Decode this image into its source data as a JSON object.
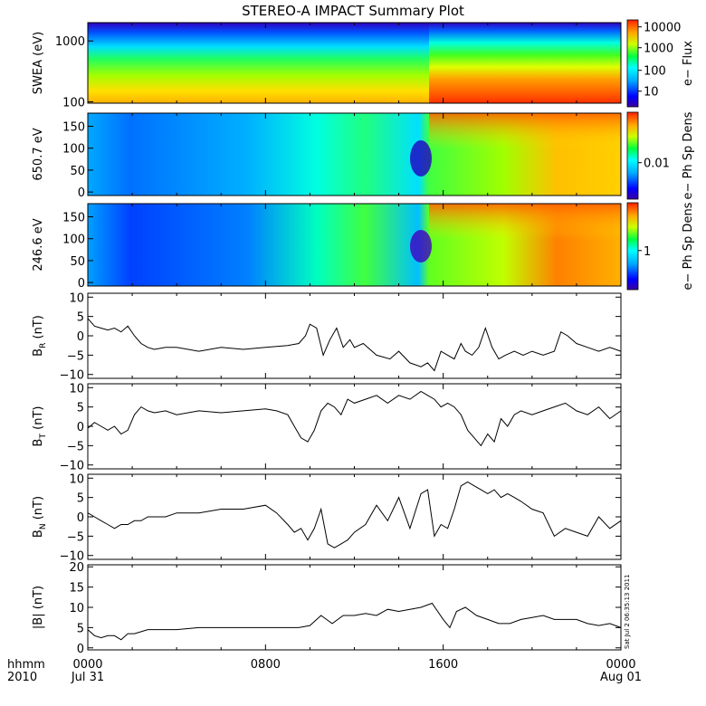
{
  "chart_data": {
    "type": "multi-panel",
    "title": "STEREO-A IMPACT Summary Plot",
    "time_axis": {
      "corner_label_1": "hhmm",
      "corner_label_2": "2010",
      "ticks": [
        {
          "hour": 0,
          "top": "0000",
          "bottom": "Jul 31"
        },
        {
          "hour": 8,
          "top": "0800",
          "bottom": ""
        },
        {
          "hour": 16,
          "top": "1600",
          "bottom": ""
        },
        {
          "hour": 24,
          "top": "0000",
          "bottom": "Aug 01"
        }
      ],
      "range_hours": [
        0,
        24
      ]
    },
    "timestamp": "Sat Jul  2 06:35:13 2011",
    "spectrograms": [
      {
        "ylabel": "SWEA (eV)",
        "scale": "log",
        "ylim": [
          95,
          2000
        ],
        "yticks": [
          {
            "v": 100,
            "t": "100"
          },
          {
            "v": 1000,
            "t": "1000"
          }
        ],
        "colorbar": {
          "label": "e− Flux",
          "ticks": [
            {
              "f": 0.92,
              "t": "10000"
            },
            {
              "f": 0.68,
              "t": "1000"
            },
            {
              "f": 0.42,
              "t": "100"
            },
            {
              "f": 0.18,
              "t": "10"
            }
          ]
        }
      },
      {
        "ylabel": "650.7 eV",
        "scale": "linear",
        "ylim": [
          -8,
          180
        ],
        "yticks": [
          {
            "v": 0,
            "t": "0"
          },
          {
            "v": 50,
            "t": "50"
          },
          {
            "v": 100,
            "t": "100"
          },
          {
            "v": 150,
            "t": "150"
          }
        ],
        "colorbar": {
          "label": "e− Ph Sp Dens",
          "ticks": [
            {
              "f": 0.42,
              "t": "0.01"
            }
          ]
        }
      },
      {
        "ylabel": "246.6 eV",
        "scale": "linear",
        "ylim": [
          -8,
          180
        ],
        "yticks": [
          {
            "v": 0,
            "t": "0"
          },
          {
            "v": 50,
            "t": "50"
          },
          {
            "v": 100,
            "t": "100"
          },
          {
            "v": 150,
            "t": "150"
          }
        ],
        "colorbar": {
          "label": "e− Ph Sp Dens",
          "ticks": [
            {
              "f": 0.45,
              "t": "1"
            }
          ]
        }
      }
    ],
    "line_panels": [
      {
        "ylabel_main": "B",
        "ylabel_sub": "R",
        "ylabel_unit": "(nT)",
        "ylim": [
          -11,
          11
        ],
        "yticks": [
          {
            "v": -10,
            "t": "−10"
          },
          {
            "v": -5,
            "t": "−5"
          },
          {
            "v": 0,
            "t": "0"
          },
          {
            "v": 5,
            "t": "5"
          },
          {
            "v": 10,
            "t": "10"
          }
        ],
        "x": [
          0,
          0.3,
          0.6,
          0.9,
          1.2,
          1.5,
          1.8,
          2.1,
          2.4,
          2.7,
          3,
          3.5,
          4,
          5,
          6,
          7,
          8,
          9,
          9.5,
          9.8,
          10,
          10.3,
          10.6,
          10.9,
          11.2,
          11.5,
          11.8,
          12,
          12.4,
          13,
          13.6,
          14,
          14.5,
          15,
          15.3,
          15.6,
          15.9,
          16.2,
          16.5,
          16.8,
          17,
          17.3,
          17.6,
          17.9,
          18.2,
          18.5,
          18.8,
          19.2,
          19.6,
          20,
          20.5,
          21,
          21.3,
          21.6,
          22,
          22.5,
          23,
          23.5,
          24
        ],
        "y": [
          4.5,
          2.5,
          2,
          1.5,
          2,
          1,
          2.5,
          0,
          -2,
          -3,
          -3.5,
          -3,
          -3,
          -4,
          -3,
          -3.5,
          -3,
          -2.5,
          -2,
          0,
          3,
          2,
          -5,
          -1,
          2,
          -3,
          -1,
          -3,
          -2,
          -5,
          -6,
          -4,
          -7,
          -8,
          -7,
          -9,
          -4,
          -5,
          -6,
          -2,
          -4,
          -5,
          -3,
          2,
          -3,
          -6,
          -5,
          -4,
          -5,
          -4,
          -5,
          -4,
          1,
          0,
          -2,
          -3,
          -4,
          -3,
          -4
        ]
      },
      {
        "ylabel_main": "B",
        "ylabel_sub": "T",
        "ylabel_unit": "(nT)",
        "ylim": [
          -11,
          11
        ],
        "yticks": [
          {
            "v": -10,
            "t": "−10"
          },
          {
            "v": -5,
            "t": "−5"
          },
          {
            "v": 0,
            "t": "0"
          },
          {
            "v": 5,
            "t": "5"
          },
          {
            "v": 10,
            "t": "10"
          }
        ],
        "x": [
          0,
          0.3,
          0.6,
          0.9,
          1.2,
          1.5,
          1.8,
          2.1,
          2.4,
          2.7,
          3,
          3.5,
          4,
          5,
          6,
          7,
          8,
          8.5,
          9,
          9.3,
          9.6,
          9.9,
          10.2,
          10.5,
          10.8,
          11.1,
          11.4,
          11.7,
          12,
          12.5,
          13,
          13.5,
          14,
          14.5,
          15,
          15.3,
          15.6,
          15.9,
          16.2,
          16.5,
          16.8,
          17.1,
          17.4,
          17.7,
          18,
          18.3,
          18.6,
          18.9,
          19.2,
          19.5,
          20,
          20.5,
          21,
          21.5,
          22,
          22.5,
          23,
          23.5,
          24
        ],
        "y": [
          -0.5,
          1,
          0,
          -1,
          0,
          -2,
          -1,
          3,
          5,
          4,
          3.5,
          4,
          3,
          4,
          3.5,
          4,
          4.5,
          4,
          3,
          0,
          -3,
          -4,
          -1,
          4,
          6,
          5,
          3,
          7,
          6,
          7,
          8,
          6,
          8,
          7,
          9,
          8,
          7,
          5,
          6,
          5,
          3,
          -1,
          -3,
          -5,
          -2,
          -4,
          2,
          0,
          3,
          4,
          3,
          4,
          5,
          6,
          4,
          3,
          5,
          2,
          4
        ]
      },
      {
        "ylabel_main": "B",
        "ylabel_sub": "N",
        "ylabel_unit": "(nT)",
        "ylim": [
          -11,
          11
        ],
        "yticks": [
          {
            "v": -10,
            "t": "−10"
          },
          {
            "v": -5,
            "t": "−5"
          },
          {
            "v": 0,
            "t": "0"
          },
          {
            "v": 5,
            "t": "5"
          },
          {
            "v": 10,
            "t": "10"
          }
        ],
        "x": [
          0,
          0.3,
          0.6,
          0.9,
          1.2,
          1.5,
          1.8,
          2.1,
          2.4,
          2.7,
          3,
          3.5,
          4,
          5,
          6,
          7,
          8,
          8.5,
          9,
          9.3,
          9.6,
          9.9,
          10.2,
          10.5,
          10.8,
          11.1,
          11.4,
          11.7,
          12,
          12.5,
          13,
          13.5,
          14,
          14.5,
          15,
          15.3,
          15.6,
          15.9,
          16.2,
          16.5,
          16.8,
          17.1,
          17.4,
          17.7,
          18,
          18.3,
          18.6,
          18.9,
          19.2,
          19.5,
          20,
          20.5,
          21,
          21.5,
          22,
          22.5,
          23,
          23.5,
          24
        ],
        "y": [
          1,
          0,
          -1,
          -2,
          -3,
          -2,
          -2,
          -1,
          -1,
          0,
          0,
          0,
          1,
          1,
          2,
          2,
          3,
          1,
          -2,
          -4,
          -3,
          -6,
          -3,
          2,
          -7,
          -8,
          -7,
          -6,
          -4,
          -2,
          3,
          -1,
          5,
          -3,
          6,
          7,
          -5,
          -2,
          -3,
          2,
          8,
          9,
          8,
          7,
          6,
          7,
          5,
          6,
          5,
          4,
          2,
          1,
          -5,
          -3,
          -4,
          -5,
          0,
          -3,
          -1
        ]
      },
      {
        "ylabel_main": "|B|",
        "ylabel_sub": "",
        "ylabel_unit": "(nT)",
        "ylim": [
          -0.5,
          20.5
        ],
        "yticks": [
          {
            "v": 0,
            "t": "0"
          },
          {
            "v": 5,
            "t": "5"
          },
          {
            "v": 10,
            "t": "10"
          },
          {
            "v": 15,
            "t": "15"
          },
          {
            "v": 20,
            "t": "20"
          }
        ],
        "x": [
          0,
          0.3,
          0.6,
          0.9,
          1.2,
          1.5,
          1.8,
          2.1,
          2.4,
          2.7,
          3,
          3.5,
          4,
          5,
          6,
          7,
          8,
          9,
          9.5,
          10,
          10.5,
          11,
          11.5,
          12,
          12.5,
          13,
          13.5,
          14,
          14.5,
          15,
          15.5,
          16,
          16.3,
          16.6,
          17,
          17.5,
          18,
          18.5,
          19,
          19.5,
          20,
          20.5,
          21,
          21.5,
          22,
          22.5,
          23,
          23.5,
          24
        ],
        "y": [
          4.5,
          3,
          2.5,
          3,
          3,
          2,
          3.5,
          3.5,
          4,
          4.5,
          4.5,
          4.5,
          4.5,
          5,
          5,
          5,
          5,
          5,
          5,
          5.5,
          8,
          6,
          8,
          8,
          8.5,
          8,
          9.5,
          9,
          9.5,
          10,
          11,
          7,
          5,
          9,
          10,
          8,
          7,
          6,
          6,
          7,
          7.5,
          8,
          7,
          7,
          7,
          6,
          5.5,
          6,
          5
        ]
      }
    ]
  }
}
